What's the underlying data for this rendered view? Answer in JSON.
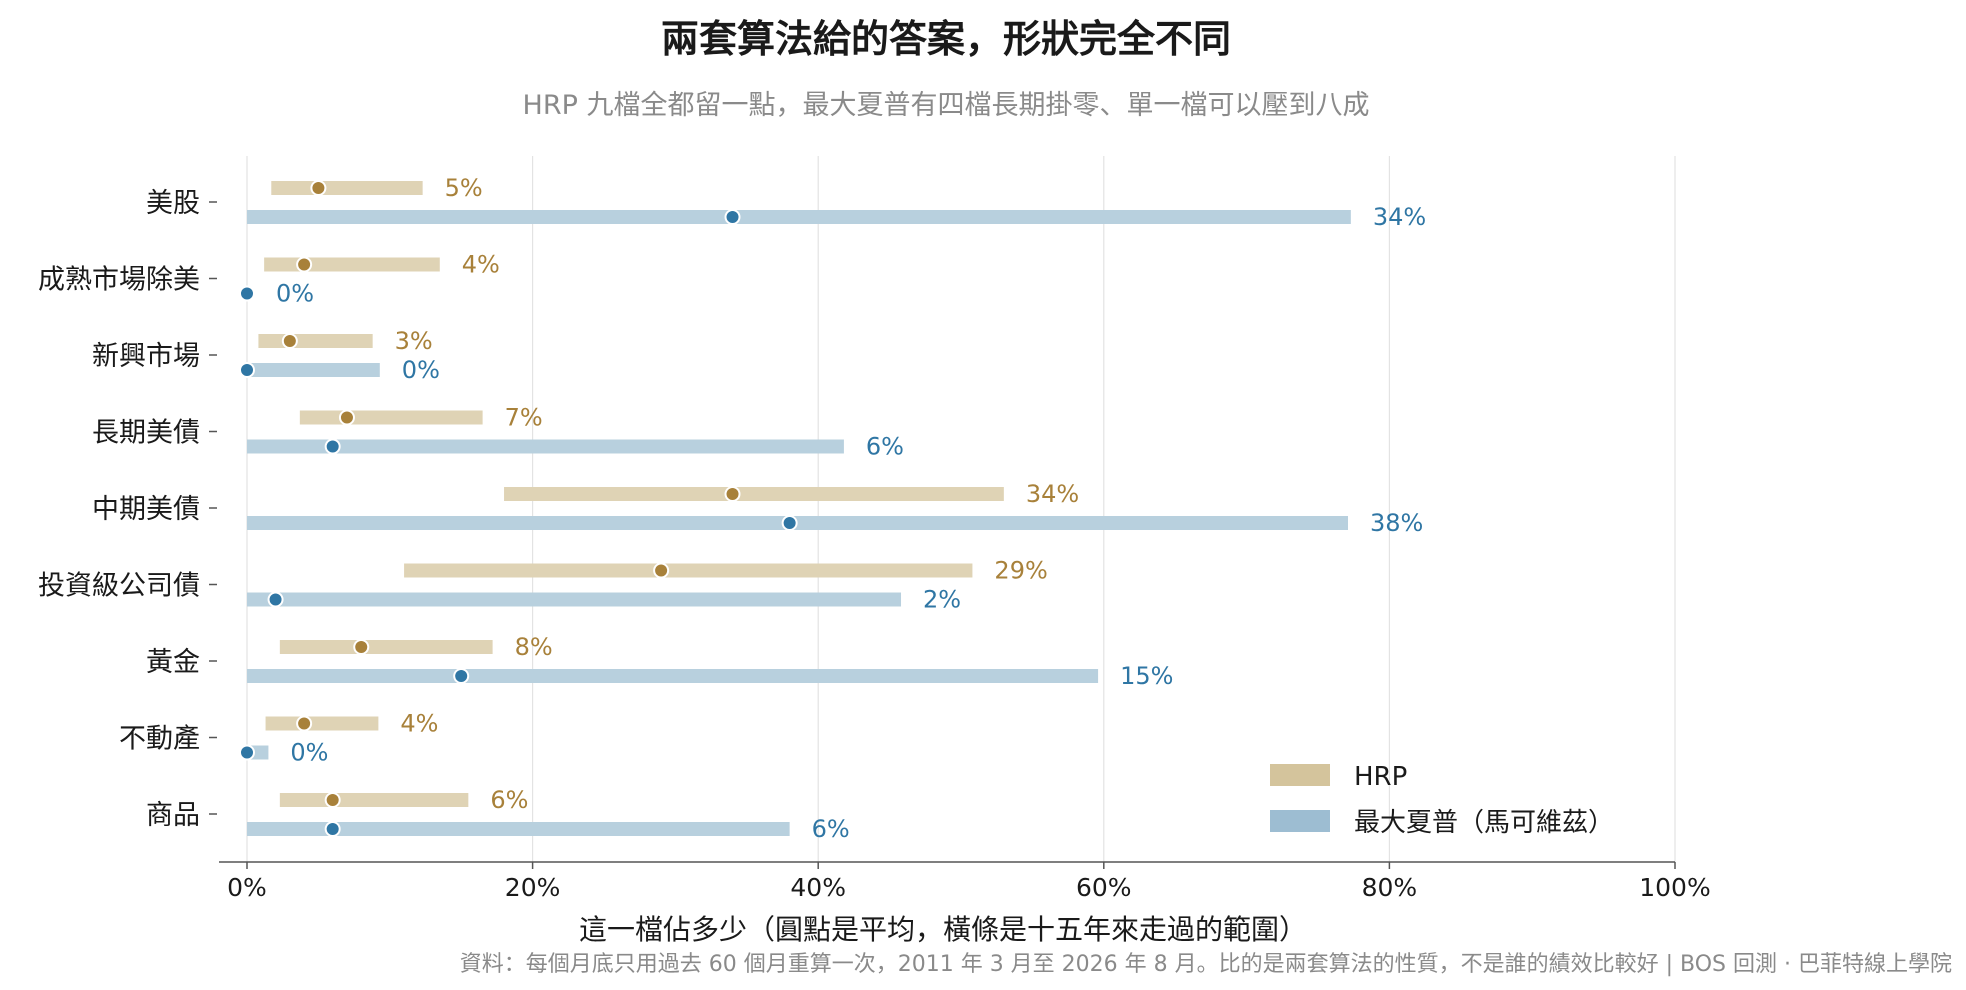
{
  "chart_data": {
    "type": "range-dot",
    "title": "兩套算法給的答案，形狀完全不同",
    "subtitle": "HRP 九檔全都留一點，最大夏普有四檔長期掛零、單一檔可以壓到八成",
    "xlabel": "這一檔佔多少（圓點是平均，橫條是十五年來走過的範圍）",
    "source": "資料：每個月底只用過去 60 個月重算一次，2011 年 3 月至 2026 年 8 月。比的是兩套算法的性質，不是誰的績效比較好 | BOS 回測 · 巴菲特線上學院",
    "xlim": [
      0,
      100
    ],
    "xticks": [
      0,
      20,
      40,
      60,
      80,
      100
    ],
    "xtick_labels": [
      "0%",
      "20%",
      "40%",
      "60%",
      "80%",
      "100%"
    ],
    "grid": true,
    "legend_position": "bottom-right",
    "categories": [
      "美股",
      "成熟市場除美",
      "新興市場",
      "長期美債",
      "中期美債",
      "投資級公司債",
      "黃金",
      "不動產",
      "商品"
    ],
    "series": [
      {
        "name": "HRP",
        "color": "#a8813a",
        "range_color": "#dfd3b5",
        "legend_color": "#d4c49c",
        "mean": [
          5,
          4,
          3,
          7,
          34,
          29,
          8,
          4,
          6
        ],
        "mean_labels": [
          "5%",
          "4%",
          "3%",
          "7%",
          "34%",
          "29%",
          "8%",
          "4%",
          "6%"
        ],
        "range": [
          [
            1.7,
            12.3
          ],
          [
            1.2,
            13.5
          ],
          [
            0.8,
            8.8
          ],
          [
            3.7,
            16.5
          ],
          [
            18,
            53
          ],
          [
            11,
            50.8
          ],
          [
            2.3,
            17.2
          ],
          [
            1.3,
            9.2
          ],
          [
            2.3,
            15.5
          ]
        ]
      },
      {
        "name": "最大夏普（馬可維茲）",
        "color": "#2f76a4",
        "range_color": "#b8d0de",
        "legend_color": "#9dbdd2",
        "mean": [
          34,
          0,
          0,
          6,
          38,
          2,
          15,
          0,
          6
        ],
        "mean_labels": [
          "34%",
          "0%",
          "0%",
          "6%",
          "38%",
          "2%",
          "15%",
          "0%",
          "6%"
        ],
        "range": [
          [
            0,
            77.3
          ],
          [
            0,
            0
          ],
          [
            0,
            9.3
          ],
          [
            0,
            41.8
          ],
          [
            0,
            77.1
          ],
          [
            0,
            45.8
          ],
          [
            0,
            59.6
          ],
          [
            0,
            1.5
          ],
          [
            0,
            38
          ]
        ]
      }
    ]
  }
}
